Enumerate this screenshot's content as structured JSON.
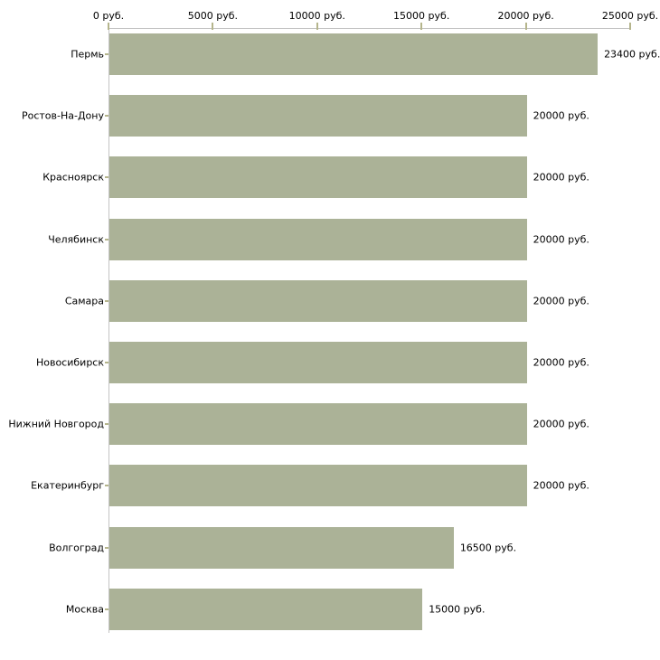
{
  "chart_data": {
    "type": "bar",
    "orientation": "horizontal",
    "title": "",
    "categories": [
      "Пермь",
      "Ростов-На-Дону",
      "Красноярск",
      "Челябинск",
      "Самара",
      "Новосибирск",
      "Нижний Новгород",
      "Екатеринбург",
      "Волгоград",
      "Москва"
    ],
    "values": [
      23400,
      20000,
      20000,
      20000,
      20000,
      20000,
      20000,
      20000,
      16500,
      15000
    ],
    "value_labels": [
      "23400 руб.",
      "20000 руб.",
      "20000 руб.",
      "20000 руб.",
      "20000 руб.",
      "20000 руб.",
      "20000 руб.",
      "20000 руб.",
      "16500 руб.",
      "15000 руб."
    ],
    "unit": "руб.",
    "xlabel": "",
    "ylabel": "",
    "x_axis": {
      "position": "top",
      "range": [
        0,
        25000
      ],
      "ticks": [
        0,
        5000,
        10000,
        15000,
        20000,
        25000
      ],
      "tick_labels": [
        "0 руб.",
        "5000 руб.",
        "10000 руб.",
        "15000 руб.",
        "20000 руб.",
        "25000 руб."
      ]
    },
    "grid": false,
    "legend": false,
    "colors": {
      "bar": "#abb297",
      "axis_line": "#c3c3c3",
      "tick_mark": "#b5b58c",
      "text": "#000000",
      "background": "#ffffff"
    }
  }
}
